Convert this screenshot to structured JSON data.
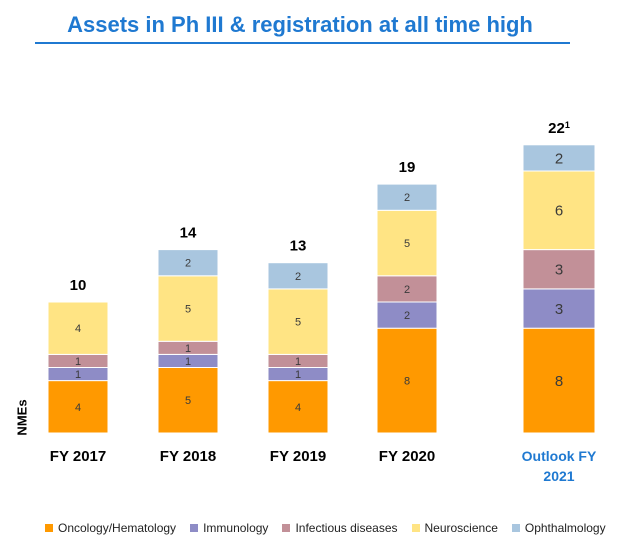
{
  "chart_data": {
    "type": "bar",
    "stacked": true,
    "title": "Assets in Ph III & registration at all time high",
    "ylabel": "NMEs",
    "categories": [
      "FY 2017",
      "FY 2018",
      "FY 2019",
      "FY 2020",
      "Outlook FY 2021"
    ],
    "totals": [
      "10",
      "14",
      "13",
      "19",
      "22"
    ],
    "total_footnote": "1",
    "series": [
      {
        "name": "Oncology/Hematology",
        "color": "#ff9900",
        "values": [
          4,
          5,
          4,
          8,
          8
        ]
      },
      {
        "name": "Immunology",
        "color": "#8e8cc6",
        "values": [
          1,
          1,
          1,
          2,
          3
        ]
      },
      {
        "name": "Infectious diseases",
        "color": "#c29098",
        "values": [
          1,
          1,
          1,
          2,
          3
        ]
      },
      {
        "name": "Neuroscience",
        "color": "#ffe484",
        "values": [
          4,
          5,
          5,
          5,
          6
        ]
      },
      {
        "name": "Ophthalmology",
        "color": "#a9c6df",
        "values": [
          0,
          2,
          2,
          2,
          2
        ]
      }
    ],
    "highlight_category_color": "#1f79d1",
    "legend_position": "bottom",
    "grid": false
  }
}
